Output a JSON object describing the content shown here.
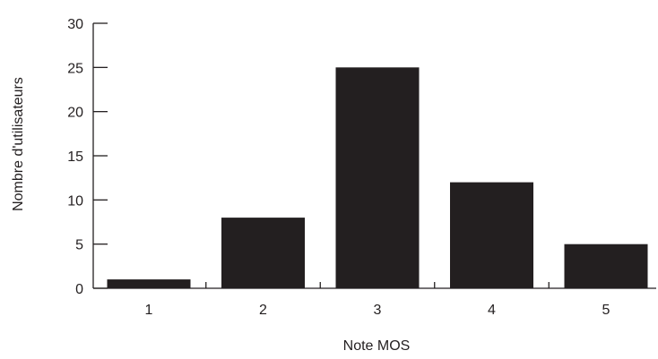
{
  "chart_data": {
    "type": "bar",
    "categories": [
      "1",
      "2",
      "3",
      "4",
      "5"
    ],
    "values": [
      1,
      8,
      25,
      12,
      5
    ],
    "xlabel": "Note MOS",
    "ylabel": "Nombre d'utilisateurs",
    "ylim": [
      0,
      30
    ],
    "yticks": [
      0,
      5,
      10,
      15,
      20,
      25,
      30
    ],
    "grid": false,
    "bar_color": "#231f20"
  }
}
